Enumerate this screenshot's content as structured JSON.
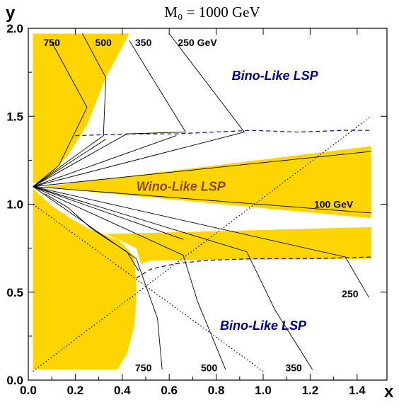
{
  "chart_data": {
    "type": "line",
    "title": "M₀ = 1000 GeV",
    "xlabel": "x",
    "ylabel": "y",
    "xlim": [
      0.0,
      1.5
    ],
    "ylim": [
      0.0,
      2.0
    ],
    "xticks": [
      0.0,
      0.2,
      0.4,
      0.6,
      0.8,
      1.0,
      1.2,
      1.4
    ],
    "xtick_labels": [
      "0.0",
      "0.2",
      "0.4",
      "0.6",
      "0.8",
      "1.0",
      "1.2",
      "1.4"
    ],
    "yticks": [
      0.0,
      0.5,
      1.0,
      1.5,
      2.0
    ],
    "ytick_labels": [
      "0.0",
      "0.5",
      "1.0",
      "1.5",
      "2.0"
    ],
    "grid": false,
    "colors": {
      "shade": "#ffd500",
      "boundary": "#1c1c8c",
      "bino_label": "#00008b",
      "wino_label": "#8b4513"
    },
    "region_labels": [
      {
        "text": "Bino-Like LSP",
        "x": 1.05,
        "y": 1.73,
        "color": "#00008b"
      },
      {
        "text": "Wino-Like LSP",
        "x": 0.65,
        "y": 1.1,
        "color": "#8b4513"
      },
      {
        "text": "Bino-Like LSP",
        "x": 1.0,
        "y": 0.31,
        "color": "#00008b"
      }
    ],
    "contour_labels": [
      {
        "text": "750",
        "x": 0.1,
        "y": 1.92
      },
      {
        "text": "500",
        "x": 0.32,
        "y": 1.92
      },
      {
        "text": "350",
        "x": 0.49,
        "y": 1.92
      },
      {
        "text": "250 GeV",
        "x": 0.72,
        "y": 1.92
      },
      {
        "text": "100 GeV",
        "x": 1.3,
        "y": 1.0
      },
      {
        "text": "250",
        "x": 1.37,
        "y": 0.49
      },
      {
        "text": "750",
        "x": 0.49,
        "y": 0.07
      },
      {
        "text": "500",
        "x": 0.77,
        "y": 0.07
      },
      {
        "text": "350",
        "x": 1.13,
        "y": 0.07
      }
    ],
    "shaded_regions": [
      {
        "name": "upper-left",
        "points": [
          [
            0.02,
            1.12
          ],
          [
            0.02,
            1.97
          ],
          [
            0.43,
            1.97
          ],
          [
            0.33,
            1.72
          ],
          [
            0.25,
            1.45
          ],
          [
            0.17,
            1.28
          ],
          [
            0.07,
            1.13
          ]
        ]
      },
      {
        "name": "lower-left",
        "points": [
          [
            0.02,
            0.06
          ],
          [
            0.02,
            1.09
          ],
          [
            0.1,
            0.99
          ],
          [
            0.18,
            0.92
          ],
          [
            0.27,
            0.85
          ],
          [
            0.32,
            0.83
          ],
          [
            0.35,
            0.81
          ],
          [
            0.38,
            0.8
          ],
          [
            0.42,
            0.75
          ],
          [
            0.45,
            0.7
          ],
          [
            0.46,
            0.55
          ],
          [
            0.46,
            0.45
          ],
          [
            0.45,
            0.3
          ],
          [
            0.42,
            0.15
          ],
          [
            0.38,
            0.06
          ]
        ]
      },
      {
        "name": "lower-band",
        "points": [
          [
            0.33,
            0.83
          ],
          [
            1.46,
            0.87
          ],
          [
            1.46,
            0.69
          ],
          [
            0.52,
            0.68
          ],
          [
            0.48,
            0.66
          ],
          [
            0.46,
            0.75
          ],
          [
            0.4,
            0.79
          ]
        ]
      },
      {
        "name": "wino-band",
        "points": [
          [
            0.07,
            1.1
          ],
          [
            1.46,
            1.33
          ],
          [
            1.46,
            0.92
          ],
          [
            0.07,
            1.095
          ]
        ]
      }
    ],
    "contours": [
      {
        "label": "750",
        "points": [
          [
            0.02,
            1.1
          ],
          [
            0.13,
            1.22
          ],
          [
            0.25,
            1.55
          ],
          [
            0.1,
            1.92
          ]
        ]
      },
      {
        "label": "500",
        "points": [
          [
            0.02,
            1.1
          ],
          [
            0.32,
            1.39
          ],
          [
            0.33,
            1.72
          ],
          [
            0.23,
            1.97
          ]
        ]
      },
      {
        "label": "350",
        "points": [
          [
            0.02,
            1.1
          ],
          [
            0.42,
            1.4
          ],
          [
            0.67,
            1.41
          ],
          [
            0.43,
            1.93
          ]
        ]
      },
      {
        "label": "250 GeV",
        "points": [
          [
            0.02,
            1.1
          ],
          [
            0.92,
            1.41
          ],
          [
            0.6,
            1.97
          ]
        ]
      },
      {
        "label": "fan-upper-1",
        "points": [
          [
            0.02,
            1.1
          ],
          [
            0.33,
            1.37
          ]
        ]
      },
      {
        "label": "fan-upper-2",
        "points": [
          [
            0.02,
            1.1
          ],
          [
            0.63,
            1.39
          ]
        ]
      },
      {
        "label": "100 GeV",
        "points": [
          [
            0.02,
            1.1
          ],
          [
            1.46,
            0.95
          ]
        ]
      },
      {
        "label": "upper-wino",
        "points": [
          [
            0.02,
            1.1
          ],
          [
            1.46,
            1.3
          ]
        ]
      },
      {
        "label": "750",
        "points": [
          [
            0.02,
            1.1
          ],
          [
            0.46,
            0.69
          ],
          [
            0.55,
            0.35
          ],
          [
            0.57,
            0.06
          ]
        ]
      },
      {
        "label": "500",
        "points": [
          [
            0.02,
            1.1
          ],
          [
            0.66,
            0.71
          ],
          [
            0.72,
            0.45
          ],
          [
            0.84,
            0.06
          ]
        ]
      },
      {
        "label": "350",
        "points": [
          [
            0.02,
            1.1
          ],
          [
            0.93,
            0.73
          ],
          [
            1.05,
            0.4
          ],
          [
            1.21,
            0.06
          ]
        ]
      },
      {
        "label": "250",
        "points": [
          [
            0.02,
            1.1
          ],
          [
            1.35,
            0.7
          ],
          [
            1.45,
            0.47
          ]
        ]
      },
      {
        "label": "fan-lower-1",
        "points": [
          [
            0.02,
            1.1
          ],
          [
            0.66,
            0.8
          ]
        ]
      },
      {
        "label": "jagged-edge",
        "points": [
          [
            0.07,
            1.06
          ],
          [
            0.17,
            0.98
          ],
          [
            0.27,
            0.86
          ],
          [
            0.35,
            0.79
          ],
          [
            0.42,
            0.73
          ],
          [
            0.47,
            0.62
          ]
        ]
      }
    ],
    "dashed_boundaries": [
      {
        "name": "upper-boundary",
        "points": [
          [
            0.2,
            1.39
          ],
          [
            0.45,
            1.4
          ],
          [
            0.63,
            1.4
          ],
          [
            0.95,
            1.42
          ],
          [
            1.15,
            1.41
          ],
          [
            1.35,
            1.42
          ],
          [
            1.46,
            1.42
          ]
        ]
      },
      {
        "name": "lower-boundary",
        "points": [
          [
            0.46,
            0.58
          ],
          [
            0.52,
            0.63
          ],
          [
            0.62,
            0.66
          ],
          [
            0.75,
            0.68
          ],
          [
            0.95,
            0.69
          ],
          [
            1.2,
            0.69
          ],
          [
            1.46,
            0.7
          ]
        ]
      }
    ],
    "dotted_lines": [
      {
        "name": "diagonal-rising",
        "points": [
          [
            0.02,
            0.05
          ],
          [
            1.46,
            1.5
          ]
        ]
      },
      {
        "name": "diagonal-falling",
        "points": [
          [
            0.02,
            1.0
          ],
          [
            1.0,
            0.05
          ]
        ]
      }
    ]
  }
}
